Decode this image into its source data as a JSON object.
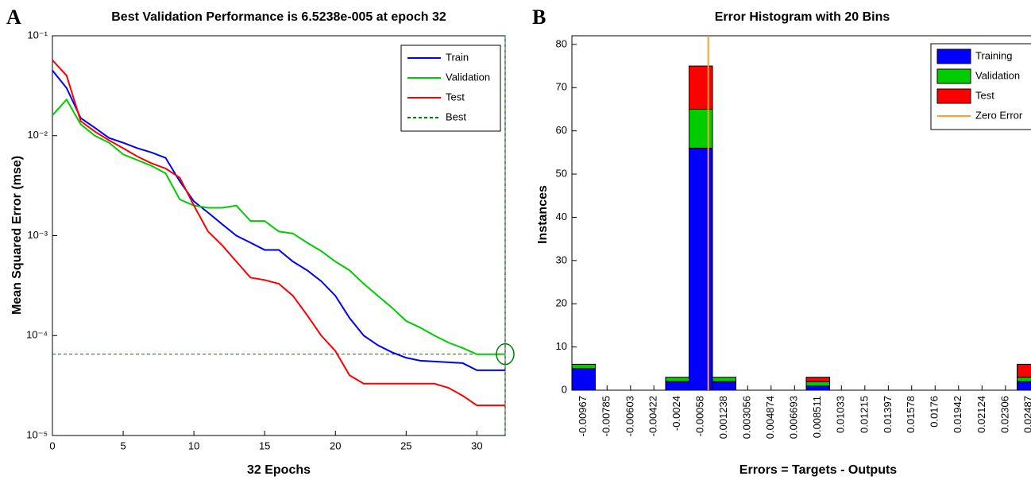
{
  "chart_data": [
    {
      "type": "line",
      "panel_label": "A",
      "title": "Best Validation Performance is 6.5238e-005 at epoch 32",
      "x_label": "32 Epochs",
      "y_label": "Mean Squared Error  (mse)",
      "x": [
        0,
        1,
        2,
        3,
        4,
        5,
        6,
        7,
        8,
        9,
        10,
        11,
        12,
        13,
        14,
        15,
        16,
        17,
        18,
        19,
        20,
        21,
        22,
        23,
        24,
        25,
        26,
        27,
        28,
        29,
        30,
        31,
        32
      ],
      "xlim": [
        0,
        32
      ],
      "xticks": [
        0,
        5,
        10,
        15,
        20,
        25,
        30
      ],
      "ylim": [
        1e-05,
        0.1
      ],
      "log_y": true,
      "yticks": [
        {
          "value": 1e-05,
          "label": "10⁻⁵"
        },
        {
          "value": 0.0001,
          "label": "10⁻⁴"
        },
        {
          "value": 0.001,
          "label": "10⁻³"
        },
        {
          "value": 0.01,
          "label": "10⁻²"
        },
        {
          "value": 0.1,
          "label": "10⁻¹"
        }
      ],
      "legend": "upper right",
      "series": [
        {
          "name": "Train",
          "color": "#0000ff",
          "values": [
            0.045,
            0.03,
            0.015,
            0.012,
            0.0095,
            0.0085,
            0.0075,
            0.0068,
            0.006,
            0.0035,
            0.0022,
            0.0017,
            0.0013,
            0.001,
            0.00085,
            0.00072,
            0.00072,
            0.00055,
            0.00045,
            0.00035,
            0.00025,
            0.00015,
            0.0001,
            8e-05,
            6.8e-05,
            6e-05,
            5.6e-05,
            5.5e-05,
            5.4e-05,
            5.3e-05,
            4.5e-05,
            4.5e-05,
            4.5e-05
          ]
        },
        {
          "name": "Validation",
          "color": "#00cc00",
          "values": [
            0.016,
            0.023,
            0.013,
            0.01,
            0.0085,
            0.0065,
            0.0057,
            0.005,
            0.0042,
            0.0023,
            0.002,
            0.0019,
            0.0019,
            0.002,
            0.0014,
            0.0014,
            0.0011,
            0.00105,
            0.00085,
            0.0007,
            0.00055,
            0.00045,
            0.00033,
            0.00025,
            0.00019,
            0.00014,
            0.00012,
            0.0001,
            8.5e-05,
            7.5e-05,
            6.5e-05,
            6.5e-05,
            6.5238e-05
          ]
        },
        {
          "name": "Test",
          "color": "#ff0000",
          "values": [
            0.057,
            0.04,
            0.014,
            0.011,
            0.009,
            0.0075,
            0.0062,
            0.0053,
            0.0047,
            0.0038,
            0.002,
            0.0011,
            0.0008,
            0.00055,
            0.00038,
            0.00036,
            0.00033,
            0.00025,
            0.00016,
            0.0001,
            7e-05,
            4e-05,
            3.3e-05,
            3.3e-05,
            3.3e-05,
            3.3e-05,
            3.3e-05,
            3.3e-05,
            3e-05,
            2.5e-05,
            2e-05,
            2e-05,
            2e-05
          ]
        }
      ],
      "best": {
        "name": "Best",
        "color": "#008000",
        "value": 6.5238e-05,
        "epoch": 32
      }
    },
    {
      "type": "histogram",
      "panel_label": "B",
      "title": "Error Histogram with 20 Bins",
      "x_label": "Errors = Targets - Outputs",
      "y_label": "Instances",
      "x": [
        -0.00967,
        -0.00785,
        -0.00603,
        -0.00422,
        -0.0024,
        -0.00058,
        0.001238,
        0.003056,
        0.004874,
        0.006693,
        0.008511,
        0.01033,
        0.01215,
        0.01397,
        0.01578,
        0.0176,
        0.01942,
        0.02124,
        0.02306,
        0.02487
      ],
      "xticks": [
        -0.00967,
        -0.00785,
        -0.00603,
        -0.00422,
        -0.0024,
        -0.00058,
        0.001238,
        0.003056,
        0.004874,
        0.006693,
        0.008511,
        0.01033,
        0.01215,
        0.01397,
        0.01578,
        0.0176,
        0.01942,
        0.02124,
        0.02306,
        0.02487
      ],
      "xlim": [
        -0.01058,
        0.02578
      ],
      "ylim": [
        0,
        82
      ],
      "yticks": [
        0,
        10,
        20,
        30,
        40,
        50,
        60,
        70,
        80
      ],
      "legend": "upper right",
      "series": [
        {
          "name": "Training",
          "color": "#0000ff",
          "values": [
            5,
            0,
            0,
            0,
            2,
            56,
            2,
            0,
            0,
            0,
            1,
            0,
            0,
            0,
            0,
            0,
            0,
            0,
            0,
            2
          ]
        },
        {
          "name": "Validation",
          "color": "#00cc00",
          "values": [
            1,
            0,
            0,
            0,
            1,
            9,
            1,
            0,
            0,
            0,
            1,
            0,
            0,
            0,
            0,
            0,
            0,
            0,
            0,
            1
          ]
        },
        {
          "name": "Test",
          "color": "#ff0000",
          "values": [
            0,
            0,
            0,
            0,
            0,
            10,
            0,
            0,
            0,
            0,
            1,
            0,
            0,
            0,
            0,
            0,
            0,
            0,
            0,
            3
          ]
        }
      ],
      "zero_error": {
        "name": "Zero Error",
        "color": "#ffa020",
        "value": 0
      }
    }
  ]
}
